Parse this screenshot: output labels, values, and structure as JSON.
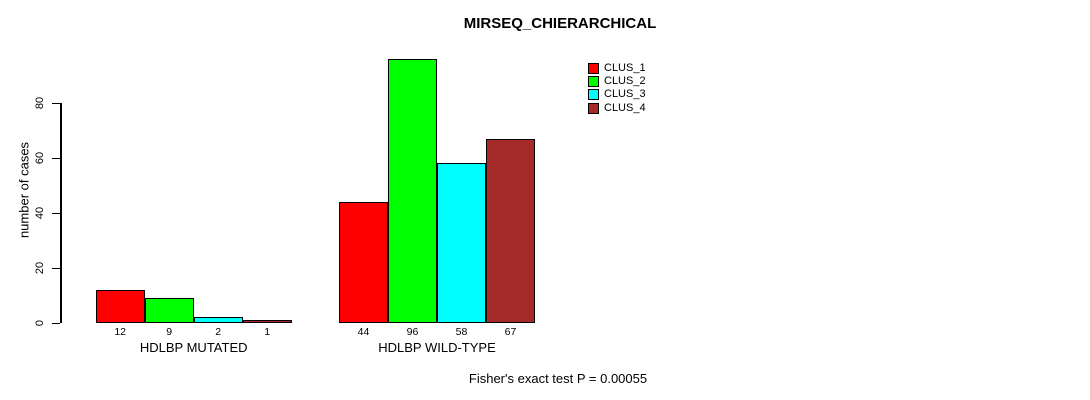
{
  "title": "MIRSEQ_CHIERARCHICAL",
  "footnote": "Fisher's exact test P = 0.00055",
  "y_axis": {
    "label": "number of cases",
    "ticks": [
      0,
      20,
      40,
      60,
      80
    ]
  },
  "legend": {
    "position": "top-right",
    "items": [
      {
        "label": "CLUS_1",
        "color": "#FF0000"
      },
      {
        "label": "CLUS_2",
        "color": "#00FF00"
      },
      {
        "label": "CLUS_3",
        "color": "#00FFFF"
      },
      {
        "label": "CLUS_4",
        "color": "#A52A2A"
      }
    ]
  },
  "chart_data": {
    "type": "bar",
    "title": "MIRSEQ_CHIERARCHICAL",
    "xlabel": "",
    "ylabel": "number of cases",
    "ylim": [
      0,
      80
    ],
    "yticks": [
      0,
      20,
      40,
      60,
      80
    ],
    "grid": false,
    "legend_position": "top-right",
    "categories": [
      "HDLBP MUTATED",
      "HDLBP WILD-TYPE"
    ],
    "series": [
      {
        "name": "CLUS_1",
        "color": "#FF0000",
        "values": [
          12,
          44
        ]
      },
      {
        "name": "CLUS_2",
        "color": "#00FF00",
        "values": [
          9,
          96
        ]
      },
      {
        "name": "CLUS_3",
        "color": "#00FFFF",
        "values": [
          2,
          58
        ]
      },
      {
        "name": "CLUS_4",
        "color": "#A52A2A",
        "values": [
          1,
          67
        ]
      }
    ],
    "bar_value_labels": [
      [
        12,
        9,
        2,
        1
      ],
      [
        44,
        96,
        58,
        67
      ]
    ],
    "annotation": "Fisher's exact test P = 0.00055"
  }
}
